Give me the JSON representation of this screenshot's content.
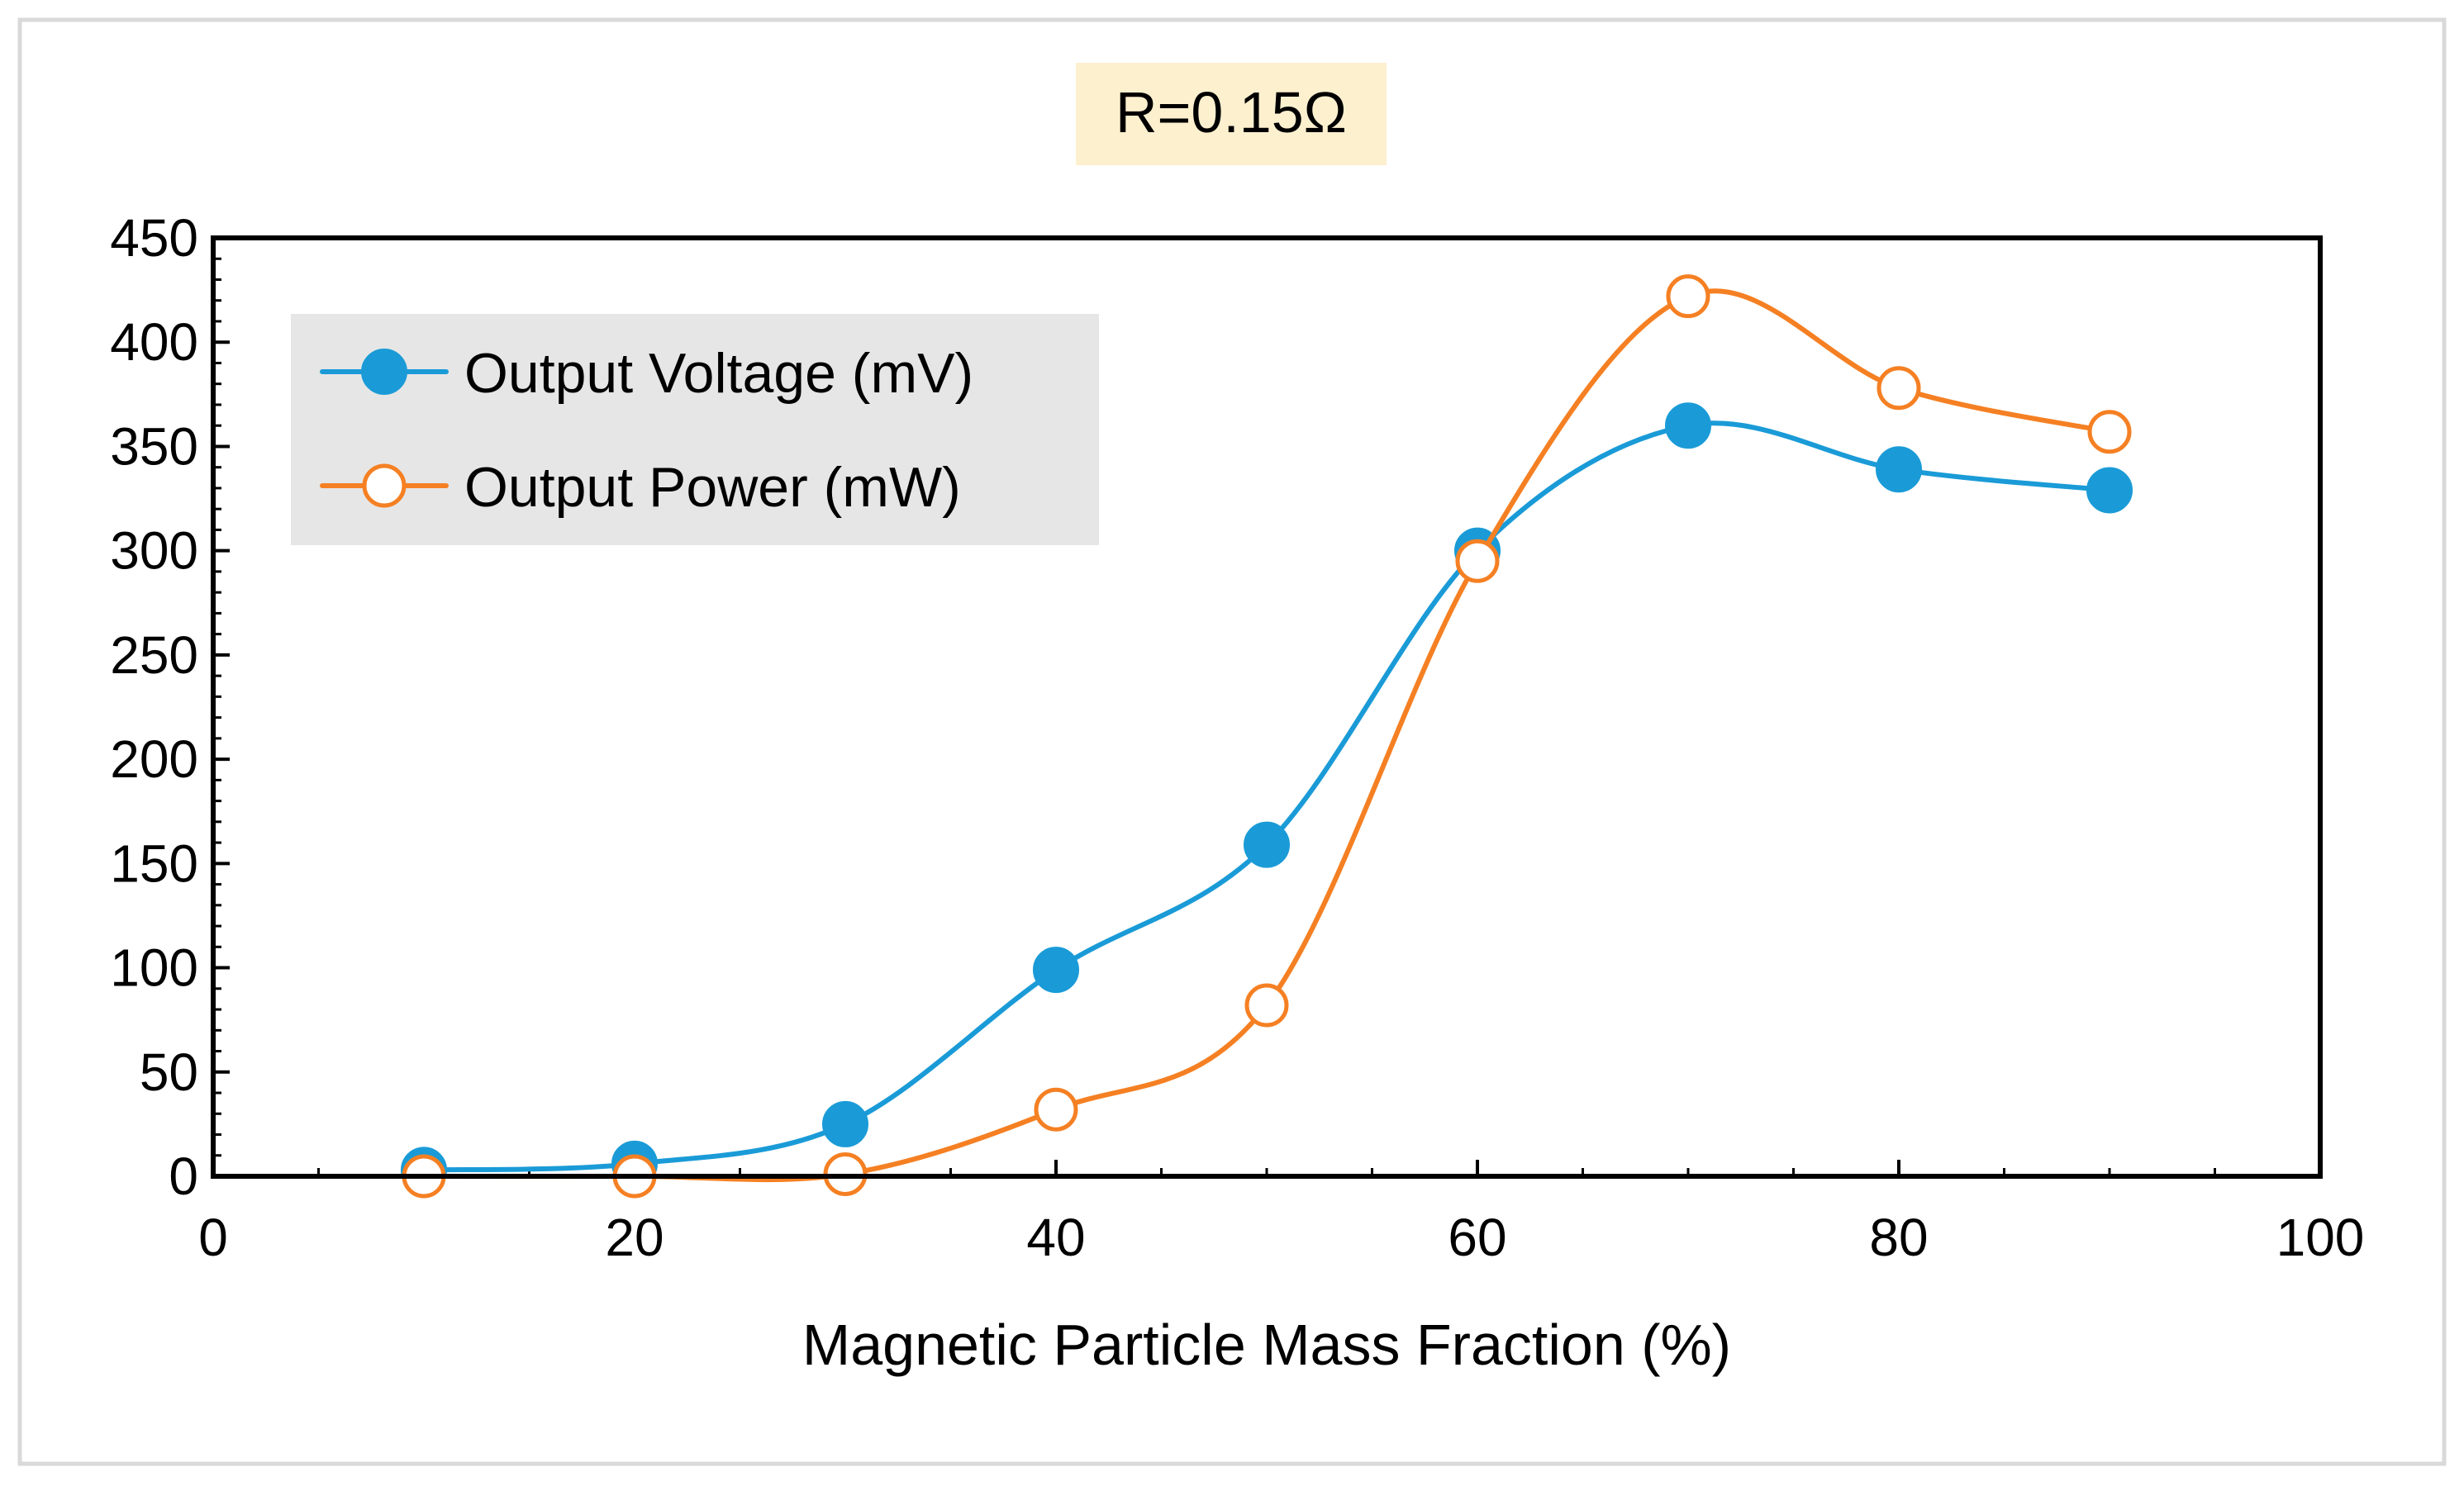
{
  "chart_data": {
    "type": "line",
    "title": "R=0.15Ω",
    "xlabel": "Magnetic Particle Mass Fraction (%)",
    "ylabel": "",
    "xlim": [
      0,
      100
    ],
    "ylim": [
      0,
      450
    ],
    "x_ticks": [
      0,
      20,
      40,
      60,
      80,
      100
    ],
    "y_ticks": [
      0,
      50,
      100,
      150,
      200,
      250,
      300,
      350,
      400,
      450
    ],
    "x_tick_labels": [
      "0",
      "20",
      "40",
      "60",
      "80",
      "100"
    ],
    "y_tick_labels": [
      "0",
      "50",
      "100",
      "150",
      "200",
      "250",
      "300",
      "350",
      "400",
      "450"
    ],
    "grid": false,
    "legend_position": "top-left",
    "x": [
      10,
      20,
      30,
      40,
      50,
      60,
      70,
      80,
      90
    ],
    "series": [
      {
        "name": "Output Voltage (mV)",
        "values": [
          3,
          6,
          25,
          99,
          159,
          300,
          360,
          339,
          329
        ],
        "color": "#1a9bd7",
        "marker": "filled-circle"
      },
      {
        "name": "Output Power (mW)",
        "values": [
          0,
          0,
          1,
          32,
          82,
          295,
          422,
          378,
          357
        ],
        "color": "#f58023",
        "marker": "open-circle"
      }
    ],
    "colors": {
      "title_box": "#fdf0cf",
      "legend_box": "#e6e6e6",
      "frame": "#000000",
      "outer_border": "#d9d9d9"
    }
  }
}
